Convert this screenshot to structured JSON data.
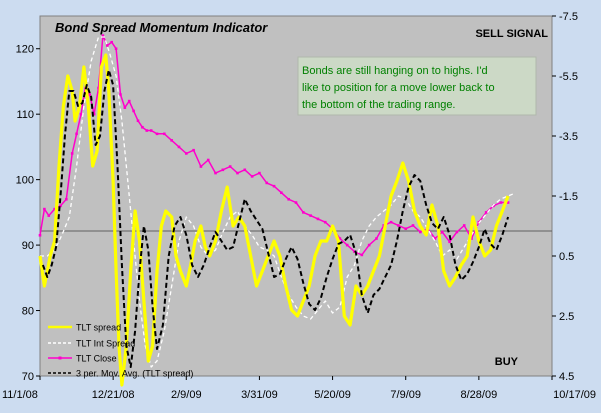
{
  "chart_data": {
    "type": "line",
    "title": "Bond Spread Momentum Indicator",
    "annotations": {
      "signal_top": "SELL SIGNAL",
      "signal_bottom": "BUY",
      "comment": [
        "Bonds are still hanging on to highs.  I'd",
        "like to position for a move lower back to",
        "the bottom of the trading range."
      ]
    },
    "x_ticks": [
      "11/1/08",
      "12/21/08",
      "2/9/09",
      "3/31/09",
      "5/20/09",
      "7/9/09",
      "8/28/09",
      "10/17/09"
    ],
    "xlim_days": [
      0,
      350
    ],
    "y_left": {
      "ylim": [
        70,
        125
      ],
      "ticks": [
        70,
        80,
        90,
        100,
        110,
        120
      ]
    },
    "y_right": {
      "ylim": [
        -7.5,
        4.5
      ],
      "ticks": [
        "-7.5",
        "-5.5",
        "-3.5",
        "-1.5",
        "0.5",
        "2.5",
        "4.5"
      ],
      "reversed": true
    },
    "legend": [
      {
        "name": "TLT spread",
        "color": "#ffff00",
        "style": "solid"
      },
      {
        "name": "TLT Int Spread",
        "color": "#ffffff",
        "style": "dashed"
      },
      {
        "name": "TLT Close",
        "color": "#ff00cc",
        "style": "marker"
      },
      {
        "name": "3 per. Mov. Avg. (TLT spread)",
        "color": "#000000",
        "style": "dashed"
      }
    ],
    "series": [
      {
        "name": "TLT Close",
        "axis": "left",
        "x": [
          0,
          3,
          6,
          10,
          14,
          18,
          22,
          25,
          28,
          31,
          34,
          37,
          40,
          43,
          46,
          49,
          52,
          55,
          58,
          61,
          64,
          67,
          70,
          73,
          76,
          80,
          85,
          90,
          95,
          100,
          105,
          110,
          115,
          120,
          125,
          130,
          135,
          140,
          145,
          150,
          155,
          160,
          165,
          170,
          175,
          180,
          185,
          190,
          195,
          200,
          205,
          210,
          215,
          220,
          225,
          230,
          235,
          240,
          245,
          250,
          255,
          260,
          265,
          270,
          275,
          280,
          285,
          290,
          295,
          300,
          305,
          310,
          315,
          320
        ],
        "values": [
          91.5,
          95.5,
          94.5,
          95.5,
          96,
          97,
          104,
          107,
          110,
          114,
          113,
          110,
          114,
          122,
          120.5,
          121,
          120,
          113,
          111,
          112,
          110.5,
          109,
          108,
          107.5,
          107.5,
          107,
          107,
          106,
          105,
          104,
          104.5,
          102,
          103,
          101,
          101.5,
          102,
          101,
          101.5,
          100.5,
          101,
          99.5,
          99,
          98,
          97,
          96.5,
          95,
          94.5,
          94,
          93.5,
          92.5,
          91,
          90,
          89,
          88.5,
          90,
          91,
          93,
          93.5,
          93,
          92.5,
          93,
          92,
          92.5,
          91,
          92,
          90.5,
          92,
          93,
          91,
          93.5,
          95,
          96,
          96.5,
          96.5
        ]
      },
      {
        "name": "TLT Int Spread",
        "axis": "right",
        "x": [
          0,
          5,
          10,
          15,
          20,
          25,
          30,
          35,
          40,
          44,
          48,
          52,
          56,
          60,
          64,
          68,
          72,
          76,
          80,
          85,
          90,
          95,
          100,
          105,
          110,
          115,
          120,
          125,
          130,
          135,
          140,
          145,
          150,
          155,
          160,
          165,
          170,
          175,
          180,
          185,
          190,
          195,
          200,
          205,
          210,
          215,
          220,
          225,
          230,
          235,
          240,
          245,
          250,
          255,
          260,
          265,
          270,
          275,
          280,
          285,
          290,
          295,
          300,
          305,
          310,
          315,
          320,
          325
        ],
        "values": [
          0.5,
          0.5,
          0.3,
          -0.2,
          -0.8,
          -2.5,
          -4.5,
          -6,
          -6.8,
          -6.8,
          -6.2,
          -5.5,
          -4,
          -2,
          0,
          2,
          3.5,
          4.2,
          4,
          3,
          1.5,
          0,
          -0.8,
          -0.5,
          0.2,
          0.5,
          0.3,
          -0.3,
          -0.8,
          -1,
          -0.5,
          -0.2,
          0.2,
          0.3,
          0.5,
          1.2,
          1.8,
          2.2,
          2.5,
          2.6,
          2.3,
          2,
          2.4,
          2.2,
          1.2,
          0.8,
          0,
          -0.5,
          -0.8,
          -1,
          -1.2,
          -1.5,
          -1.4,
          -1,
          -0.8,
          -0.4,
          0,
          0.5,
          0.3,
          0.6,
          0.2,
          -0.2,
          -0.6,
          -0.9,
          -1.2,
          -1.4,
          -1.5,
          -1.6
        ]
      },
      {
        "name": "TLT spread",
        "axis": "right",
        "x": [
          0,
          3,
          7,
          10,
          13,
          16,
          19,
          22,
          24,
          27,
          30,
          33,
          36,
          39,
          42,
          45,
          47,
          50,
          52,
          54,
          56,
          59,
          62,
          65,
          68,
          71,
          74,
          77,
          80,
          83,
          86,
          90,
          93,
          96,
          100,
          103,
          106,
          110,
          113,
          116,
          120,
          124,
          128,
          132,
          136,
          140,
          144,
          148,
          152,
          156,
          160,
          164,
          168,
          172,
          176,
          180,
          184,
          188,
          192,
          196,
          200,
          204,
          208,
          212,
          216,
          220,
          224,
          228,
          232,
          236,
          240,
          244,
          248,
          252,
          256,
          260,
          264,
          268,
          272,
          276,
          280,
          284,
          288,
          292,
          296,
          300,
          304,
          308,
          312,
          316,
          320
        ],
        "values": [
          0.5,
          1.5,
          0.5,
          0,
          -2.5,
          -4.5,
          -5.5,
          -5,
          -4,
          -4.5,
          -5.8,
          -4.5,
          -2.5,
          -3,
          -5.8,
          -6.2,
          -5,
          -2,
          1,
          3.5,
          4.8,
          3.5,
          1,
          -1,
          0,
          2,
          4,
          3.5,
          1,
          -0.5,
          -1,
          -0.8,
          0.5,
          1,
          1.5,
          0.8,
          0,
          -0.5,
          0.2,
          0.5,
          0,
          -1,
          -1.8,
          -0.5,
          -0.8,
          -0.5,
          0.5,
          1.5,
          1,
          0.5,
          0,
          0.5,
          1.5,
          2.3,
          2.5,
          2,
          1.5,
          0.5,
          0,
          0,
          -0.5,
          0,
          2.5,
          2.8,
          1.5,
          1.8,
          1.5,
          1,
          0.5,
          -0.5,
          -1.5,
          -2,
          -2.6,
          -2,
          -1,
          -0.5,
          -0.2,
          -1.2,
          -0.5,
          1,
          1.5,
          1.2,
          0.8,
          0.5,
          -0.8,
          0,
          0.5,
          0.3,
          -0.5,
          -1,
          -1.5
        ]
      },
      {
        "name": "3 per. Mov. Avg. (TLT spread)",
        "axis": "right",
        "x": [
          2,
          5,
          8,
          11,
          14,
          17,
          20,
          23,
          26,
          29,
          32,
          35,
          38,
          41,
          44,
          47,
          50,
          53,
          56,
          59,
          62,
          65,
          68,
          71,
          74,
          77,
          80,
          84,
          88,
          92,
          96,
          100,
          104,
          108,
          112,
          116,
          120,
          124,
          128,
          132,
          136,
          140,
          144,
          148,
          152,
          156,
          160,
          164,
          168,
          172,
          176,
          180,
          184,
          188,
          192,
          196,
          200,
          204,
          208,
          212,
          216,
          220,
          224,
          228,
          232,
          236,
          240,
          244,
          248,
          252,
          256,
          260,
          264,
          268,
          272,
          276,
          280,
          284,
          288,
          292,
          296,
          300,
          304,
          308,
          312,
          316,
          320
        ],
        "values": [
          0.8,
          1.2,
          0.8,
          0.2,
          -1.5,
          -3.5,
          -5,
          -5,
          -4.5,
          -4.6,
          -5.2,
          -4.8,
          -3.2,
          -3.5,
          -5,
          -5.7,
          -5.2,
          -2.5,
          0.8,
          3.5,
          4.2,
          3,
          1,
          -0.5,
          0.3,
          2.2,
          3.6,
          2.8,
          0.5,
          -0.5,
          -0.8,
          -0.2,
          0.8,
          1.2,
          0.8,
          0.2,
          -0.3,
          0,
          0.3,
          0.2,
          -0.6,
          -1.4,
          -1,
          -0.7,
          -0.4,
          0.4,
          1.2,
          1.1,
          0.6,
          0.2,
          0.6,
          1.4,
          2.1,
          2.3,
          1.9,
          1.2,
          0.6,
          0.1,
          0,
          -0.2,
          0.4,
          1.8,
          2.4,
          1.8,
          1.6,
          1.2,
          0.8,
          0,
          -1,
          -1.8,
          -2.2,
          -2,
          -1.2,
          -0.6,
          -0.4,
          -0.8,
          -0.2,
          0.8,
          1.3,
          1.1,
          0.7,
          0.2,
          -0.4,
          0.1,
          0.3,
          -0.2,
          -0.8
        ]
      }
    ]
  }
}
